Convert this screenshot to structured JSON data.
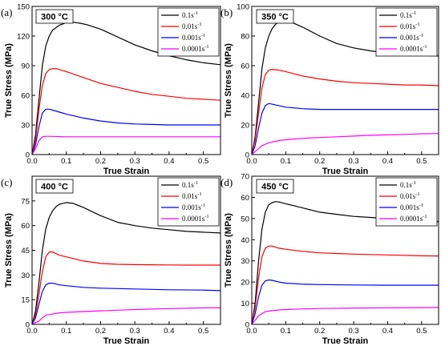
{
  "chart_data": [
    {
      "type": "line",
      "panel": "(a)",
      "title": "300 °C",
      "xlabel": "True Strain",
      "ylabel": "True Stress (MPa)",
      "xlim": [
        0.0,
        0.55
      ],
      "ylim": [
        0,
        150
      ],
      "xticks": [
        "0.0",
        "0.1",
        "0.2",
        "0.3",
        "0.4",
        "0.5"
      ],
      "yticks": [
        "0",
        "30",
        "60",
        "90",
        "120",
        "150"
      ],
      "legend_position": "top-right",
      "series": [
        {
          "name": "0.1s",
          "sup": "-1",
          "color": "#000000",
          "x": [
            0,
            0.01,
            0.02,
            0.03,
            0.04,
            0.05,
            0.06,
            0.08,
            0.1,
            0.12,
            0.14,
            0.16,
            0.2,
            0.25,
            0.3,
            0.35,
            0.4,
            0.45,
            0.5,
            0.55
          ],
          "y": [
            0,
            20,
            55,
            90,
            110,
            120,
            126,
            131,
            133.5,
            134,
            133,
            131.5,
            127,
            119,
            111,
            105,
            100,
            96,
            93,
            91
          ]
        },
        {
          "name": "0.01s",
          "sup": "-1",
          "color": "#ff0000",
          "x": [
            0,
            0.01,
            0.02,
            0.03,
            0.04,
            0.05,
            0.06,
            0.07,
            0.08,
            0.1,
            0.15,
            0.2,
            0.25,
            0.3,
            0.35,
            0.4,
            0.45,
            0.5,
            0.55
          ],
          "y": [
            0,
            15,
            45,
            70,
            82,
            86,
            87,
            87,
            86,
            84,
            78,
            72,
            68,
            64,
            61,
            59,
            57,
            56,
            55
          ]
        },
        {
          "name": "0.001s",
          "sup": "-1",
          "color": "#0000ff",
          "x": [
            0,
            0.01,
            0.02,
            0.03,
            0.04,
            0.05,
            0.06,
            0.08,
            0.1,
            0.15,
            0.2,
            0.25,
            0.3,
            0.35,
            0.4,
            0.45,
            0.5,
            0.55
          ],
          "y": [
            0,
            10,
            28,
            42,
            46,
            46,
            45,
            43,
            41,
            37,
            34,
            32,
            31,
            30.5,
            30,
            30,
            30,
            30
          ]
        },
        {
          "name": "0.0001s",
          "sup": "-1",
          "color": "#ff00ff",
          "x": [
            0,
            0.01,
            0.02,
            0.03,
            0.04,
            0.05,
            0.1,
            0.2,
            0.3,
            0.4,
            0.5,
            0.55
          ],
          "y": [
            0,
            6,
            14,
            18,
            18.5,
            18.5,
            18,
            18,
            18,
            18,
            18,
            18
          ]
        }
      ]
    },
    {
      "type": "line",
      "panel": "(b)",
      "title": "350 °C",
      "xlabel": "True Strain",
      "ylabel": "True Stress (MPa)",
      "xlim": [
        0.0,
        0.55
      ],
      "ylim": [
        0,
        100
      ],
      "xticks": [
        "0.0",
        "0.1",
        "0.2",
        "0.3",
        "0.4",
        "0.5"
      ],
      "yticks": [
        "0",
        "20",
        "40",
        "60",
        "80",
        "100"
      ],
      "legend_position": "top-right",
      "series": [
        {
          "name": "0.1s",
          "sup": "-1",
          "color": "#000000",
          "x": [
            0,
            0.01,
            0.02,
            0.03,
            0.04,
            0.05,
            0.06,
            0.07,
            0.08,
            0.1,
            0.12,
            0.15,
            0.2,
            0.25,
            0.3,
            0.35,
            0.4,
            0.45,
            0.5,
            0.55
          ],
          "y": [
            0,
            12,
            35,
            58,
            72,
            80,
            85,
            88,
            89.5,
            90,
            89,
            86,
            80,
            75,
            72,
            70,
            68.5,
            67.5,
            67,
            66.5
          ]
        },
        {
          "name": "0.01s",
          "sup": "-1",
          "color": "#ff0000",
          "x": [
            0,
            0.01,
            0.02,
            0.03,
            0.04,
            0.05,
            0.06,
            0.08,
            0.1,
            0.15,
            0.2,
            0.25,
            0.3,
            0.35,
            0.4,
            0.45,
            0.5,
            0.55
          ],
          "y": [
            0,
            10,
            28,
            45,
            54,
            57,
            57.5,
            57,
            56,
            53,
            51,
            49.5,
            48.5,
            48,
            47.5,
            47,
            47,
            46.5
          ]
        },
        {
          "name": "0.001s",
          "sup": "-1",
          "color": "#0000ff",
          "x": [
            0,
            0.01,
            0.02,
            0.03,
            0.04,
            0.05,
            0.06,
            0.08,
            0.1,
            0.15,
            0.2,
            0.3,
            0.4,
            0.5,
            0.55
          ],
          "y": [
            0,
            6,
            18,
            28,
            33,
            34.5,
            34,
            33,
            32,
            31,
            30.5,
            30.5,
            30.5,
            30.5,
            30.5
          ]
        },
        {
          "name": "0.0001s",
          "sup": "-1",
          "color": "#ff00ff",
          "x": [
            0,
            0.01,
            0.02,
            0.03,
            0.05,
            0.08,
            0.1,
            0.15,
            0.2,
            0.25,
            0.3,
            0.35,
            0.4,
            0.45,
            0.5,
            0.55
          ],
          "y": [
            0,
            2,
            4,
            6,
            8,
            9.5,
            10,
            11,
            11.5,
            12,
            12.5,
            13,
            13.3,
            13.6,
            14,
            14.2
          ]
        }
      ]
    },
    {
      "type": "line",
      "panel": "(c)",
      "title": "400 °C",
      "xlabel": "True Strain",
      "ylabel": "True Stress (MPa)",
      "xlim": [
        0.0,
        0.55
      ],
      "ylim": [
        0,
        90
      ],
      "xticks": [
        "0.0",
        "0.1",
        "0.2",
        "0.3",
        "0.4",
        "0.5"
      ],
      "yticks": [
        "0",
        "15",
        "30",
        "45",
        "60",
        "75"
      ],
      "legend_position": "top-right",
      "series": [
        {
          "name": "0.1s",
          "sup": "-1",
          "color": "#000000",
          "x": [
            0,
            0.01,
            0.02,
            0.03,
            0.04,
            0.05,
            0.06,
            0.07,
            0.08,
            0.1,
            0.12,
            0.15,
            0.2,
            0.25,
            0.3,
            0.35,
            0.4,
            0.45,
            0.5,
            0.55
          ],
          "y": [
            0,
            8,
            25,
            45,
            58,
            65,
            69,
            71.5,
            73,
            74,
            73.5,
            71,
            66,
            62,
            60,
            58.5,
            57.5,
            56.5,
            56,
            55.5
          ]
        },
        {
          "name": "0.01s",
          "sup": "-1",
          "color": "#ff0000",
          "x": [
            0,
            0.01,
            0.02,
            0.03,
            0.04,
            0.05,
            0.06,
            0.08,
            0.1,
            0.15,
            0.2,
            0.25,
            0.3,
            0.35,
            0.4,
            0.45,
            0.5,
            0.55
          ],
          "y": [
            0,
            6,
            18,
            32,
            41,
            44,
            44,
            42,
            41,
            38.5,
            37,
            36.5,
            36.3,
            36.2,
            36.1,
            36,
            36,
            36
          ]
        },
        {
          "name": "0.001s",
          "sup": "-1",
          "color": "#0000ff",
          "x": [
            0,
            0.01,
            0.02,
            0.03,
            0.04,
            0.05,
            0.06,
            0.08,
            0.1,
            0.15,
            0.2,
            0.3,
            0.4,
            0.5,
            0.55
          ],
          "y": [
            0,
            4,
            12,
            20,
            24,
            25,
            25,
            24,
            23.5,
            22.5,
            22,
            21.5,
            21,
            20.8,
            20.5
          ]
        },
        {
          "name": "0.0001s",
          "sup": "-1",
          "color": "#ff00ff",
          "x": [
            0,
            0.01,
            0.02,
            0.03,
            0.04,
            0.05,
            0.08,
            0.1,
            0.15,
            0.2,
            0.25,
            0.3,
            0.35,
            0.4,
            0.45,
            0.5,
            0.55
          ],
          "y": [
            0,
            1,
            2,
            4,
            5.5,
            6,
            7,
            7.3,
            7.8,
            8.2,
            8.6,
            9,
            9.3,
            9.6,
            9.8,
            10,
            10
          ]
        }
      ]
    },
    {
      "type": "line",
      "panel": "(d)",
      "title": "450 °C",
      "xlabel": "True Strain",
      "ylabel": "True Stress (MPa)",
      "xlim": [
        0.0,
        0.55
      ],
      "ylim": [
        0,
        70
      ],
      "xticks": [
        "0.0",
        "0.1",
        "0.2",
        "0.3",
        "0.4",
        "0.5"
      ],
      "yticks": [
        "0",
        "10",
        "20",
        "30",
        "40",
        "50",
        "60",
        "70"
      ],
      "legend_position": "top-right",
      "series": [
        {
          "name": "0.1s",
          "sup": "-1",
          "color": "#000000",
          "x": [
            0,
            0.01,
            0.02,
            0.03,
            0.04,
            0.05,
            0.06,
            0.07,
            0.08,
            0.1,
            0.15,
            0.2,
            0.25,
            0.3,
            0.35,
            0.4,
            0.45,
            0.5,
            0.55
          ],
          "y": [
            0,
            10,
            30,
            45,
            53,
            56.5,
            57.5,
            58,
            57.8,
            57,
            55,
            53,
            52,
            51,
            50.5,
            50,
            49.5,
            49,
            48.5
          ]
        },
        {
          "name": "0.01s",
          "sup": "-1",
          "color": "#ff0000",
          "x": [
            0,
            0.01,
            0.02,
            0.03,
            0.04,
            0.05,
            0.06,
            0.08,
            0.1,
            0.15,
            0.2,
            0.25,
            0.3,
            0.35,
            0.4,
            0.45,
            0.5,
            0.55
          ],
          "y": [
            0,
            8,
            22,
            32,
            36,
            37,
            37,
            36,
            35.5,
            34.5,
            33.8,
            33.5,
            33.2,
            33,
            32.8,
            32.6,
            32.4,
            32.3
          ]
        },
        {
          "name": "0.001s",
          "sup": "-1",
          "color": "#0000ff",
          "x": [
            0,
            0.01,
            0.02,
            0.03,
            0.04,
            0.05,
            0.06,
            0.08,
            0.1,
            0.15,
            0.2,
            0.3,
            0.4,
            0.5,
            0.55
          ],
          "y": [
            0,
            5,
            13,
            18.5,
            20.5,
            21,
            20.8,
            20,
            19.5,
            19,
            18.8,
            18.6,
            18.5,
            18.5,
            18.5
          ]
        },
        {
          "name": "0.0001s",
          "sup": "-1",
          "color": "#ff00ff",
          "x": [
            0,
            0.01,
            0.02,
            0.03,
            0.04,
            0.05,
            0.08,
            0.1,
            0.15,
            0.2,
            0.3,
            0.4,
            0.5,
            0.55
          ],
          "y": [
            0,
            2,
            4,
            5,
            6,
            6.3,
            6.8,
            7,
            7.3,
            7.5,
            7.7,
            7.8,
            7.9,
            8
          ]
        }
      ]
    }
  ]
}
